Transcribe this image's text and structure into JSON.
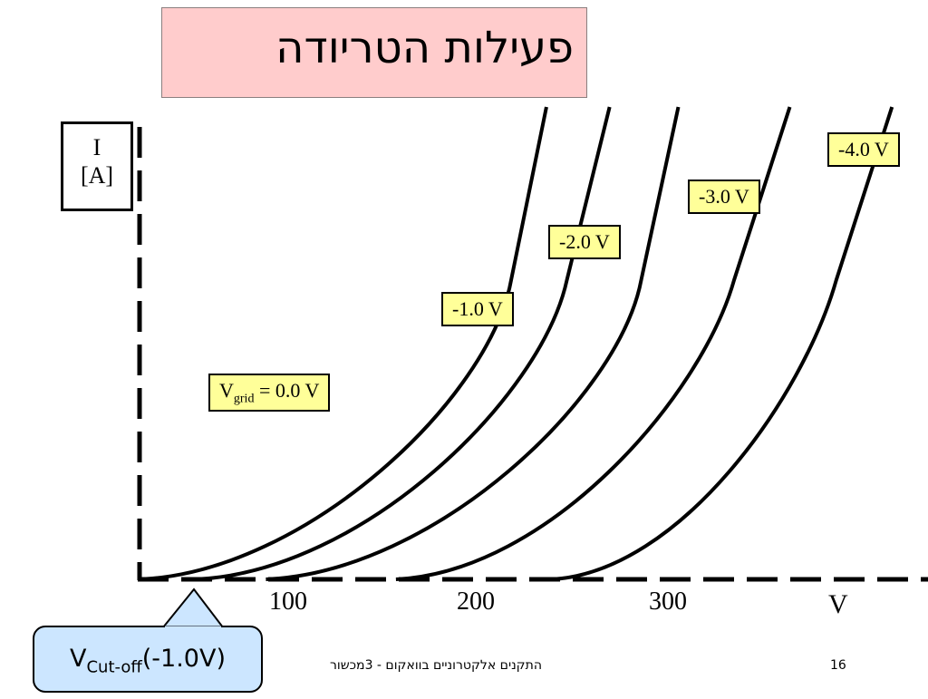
{
  "slide": {
    "title": "פעילות  הטריודה",
    "footer": "התקנים אלקטרוניים בוואקום - 3מכשור",
    "page_number": "16"
  },
  "callout": {
    "main": "V",
    "sub": "Cut-off",
    "value": "(-1.0V)"
  },
  "colors": {
    "title_bg": "#ffcccc",
    "label_bg": "#ffff99",
    "callout_bg": "#cce6ff"
  },
  "chart_data": {
    "type": "line",
    "ylabel_main": "I",
    "ylabel_unit": "[A]",
    "xlabel": "V",
    "x_ticks": [
      "100",
      "200",
      "300"
    ],
    "x_tick_values": [
      100,
      200,
      300
    ],
    "x_range": [
      0,
      415
    ],
    "grid": false,
    "series": [
      {
        "name_main": "V",
        "name_sub": "grid",
        "name_rest": " = 0.0 V",
        "x_start": 0,
        "x_end": 219,
        "x_lin": 200
      },
      {
        "name": "-1.0 V",
        "x_start": 30,
        "x_end": 253,
        "x_lin": 230
      },
      {
        "name": "-2.0 V",
        "x_start": 68,
        "x_end": 290,
        "x_lin": 270
      },
      {
        "name": "-3.0 V",
        "x_start": 138,
        "x_end": 350,
        "x_lin": 320
      },
      {
        "name": "-4.0 V",
        "x_start": 222,
        "x_end": 405,
        "x_lin": 375
      }
    ]
  }
}
